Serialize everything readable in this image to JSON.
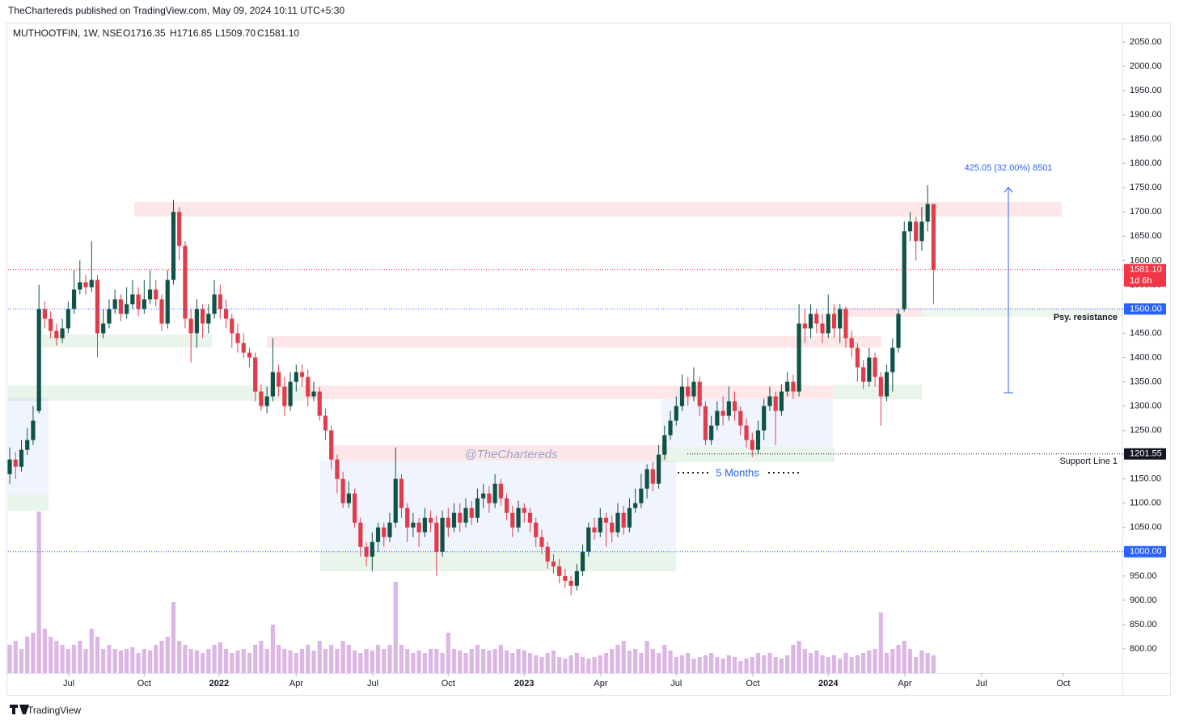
{
  "chart_data": {
    "type": "candlestick",
    "header": "TheChartereds published on TradingView.com, May 09, 2024 10:11 UTC+5:30",
    "symbol": "MUTHOOTFIN, 1W, NSE",
    "ohlc_legend": [
      "O1716.35",
      "H1716.85",
      "L1509.70",
      "C1581.10"
    ],
    "brand": "TradingView",
    "watermark": "@TheChartereds",
    "up_color": "#0f5246",
    "down_color": "#e23b49",
    "volume_color": "#dcb6e4",
    "open": [
      1160,
      1190,
      1175,
      1210,
      1230,
      1290,
      1500,
      1480,
      1455,
      1440,
      1460,
      1500,
      1540,
      1555,
      1545,
      1560,
      1450,
      1470,
      1500,
      1520,
      1490,
      1510,
      1530,
      1500,
      1520,
      1540,
      1520,
      1470,
      1560,
      1700,
      1630,
      1480,
      1450,
      1500,
      1470,
      1490,
      1530,
      1500,
      1480,
      1450,
      1430,
      1410,
      1400,
      1330,
      1300,
      1320,
      1370,
      1340,
      1300,
      1350,
      1370,
      1360,
      1320,
      1330,
      1280,
      1250,
      1190,
      1150,
      1100,
      1120,
      1060,
      1010,
      990,
      1020,
      1050,
      1030,
      1060,
      1150,
      1090,
      1050,
      1060,
      1040,
      1070,
      1060,
      1000,
      1070,
      1050,
      1080,
      1060,
      1090,
      1070,
      1110,
      1120,
      1100,
      1140,
      1110,
      1080,
      1050,
      1090,
      1080,
      1060,
      1030,
      1010,
      980,
      970,
      950,
      940,
      930,
      960,
      1000,
      1050,
      1040,
      1070,
      1060,
      1040,
      1080,
      1050,
      1090,
      1100,
      1130,
      1170,
      1140,
      1200,
      1240,
      1270,
      1300,
      1340,
      1320,
      1350,
      1300,
      1230,
      1260,
      1290,
      1280,
      1310,
      1290,
      1260,
      1230,
      1210,
      1250,
      1300,
      1320,
      1290,
      1330,
      1350,
      1330,
      1470,
      1460,
      1490,
      1470,
      1450,
      1490,
      1460,
      1500,
      1440,
      1420,
      1380,
      1350,
      1400,
      1360,
      1320,
      1370,
      1420,
      1500,
      1660,
      1680,
      1640,
      1680,
      1716.35
    ],
    "high": [
      1215,
      1205,
      1230,
      1255,
      1300,
      1550,
      1515,
      1495,
      1470,
      1480,
      1515,
      1580,
      1600,
      1570,
      1640,
      1570,
      1500,
      1520,
      1540,
      1530,
      1545,
      1560,
      1545,
      1560,
      1580,
      1560,
      1530,
      1580,
      1725,
      1710,
      1640,
      1500,
      1520,
      1510,
      1510,
      1560,
      1550,
      1520,
      1490,
      1470,
      1450,
      1420,
      1410,
      1345,
      1340,
      1440,
      1385,
      1360,
      1370,
      1385,
      1385,
      1375,
      1350,
      1340,
      1295,
      1260,
      1200,
      1165,
      1145,
      1130,
      1070,
      1020,
      1040,
      1060,
      1060,
      1080,
      1215,
      1160,
      1100,
      1080,
      1070,
      1090,
      1085,
      1075,
      1085,
      1090,
      1100,
      1100,
      1110,
      1105,
      1130,
      1140,
      1135,
      1160,
      1150,
      1120,
      1095,
      1105,
      1100,
      1090,
      1070,
      1045,
      1020,
      995,
      985,
      965,
      950,
      975,
      1015,
      1060,
      1070,
      1090,
      1080,
      1075,
      1100,
      1095,
      1110,
      1130,
      1160,
      1180,
      1185,
      1220,
      1260,
      1290,
      1320,
      1365,
      1360,
      1380,
      1360,
      1310,
      1280,
      1310,
      1320,
      1340,
      1330,
      1300,
      1275,
      1245,
      1270,
      1315,
      1340,
      1330,
      1345,
      1370,
      1365,
      1510,
      1500,
      1510,
      1500,
      1490,
      1530,
      1510,
      1510,
      1505,
      1455,
      1430,
      1395,
      1420,
      1410,
      1370,
      1385,
      1440,
      1500,
      1680,
      1700,
      1690,
      1710,
      1755,
      1716.85
    ],
    "low": [
      1140,
      1150,
      1165,
      1200,
      1220,
      1285,
      1460,
      1440,
      1425,
      1430,
      1450,
      1490,
      1530,
      1530,
      1535,
      1400,
      1440,
      1460,
      1490,
      1475,
      1480,
      1500,
      1485,
      1490,
      1510,
      1505,
      1455,
      1460,
      1550,
      1600,
      1460,
      1390,
      1420,
      1440,
      1450,
      1480,
      1480,
      1460,
      1420,
      1410,
      1400,
      1380,
      1310,
      1290,
      1285,
      1310,
      1320,
      1280,
      1290,
      1330,
      1340,
      1300,
      1310,
      1270,
      1230,
      1170,
      1120,
      1090,
      1090,
      1050,
      990,
      970,
      960,
      1000,
      1010,
      1020,
      1050,
      1070,
      1020,
      1030,
      1010,
      1030,
      1040,
      950,
      990,
      1030,
      1040,
      1040,
      1050,
      1055,
      1060,
      1090,
      1080,
      1090,
      1095,
      1065,
      1030,
      1040,
      1060,
      1040,
      1010,
      995,
      965,
      955,
      935,
      925,
      910,
      920,
      950,
      990,
      1025,
      1030,
      1010,
      1020,
      1030,
      1035,
      1040,
      1080,
      1090,
      1110,
      1125,
      1130,
      1190,
      1230,
      1260,
      1290,
      1300,
      1310,
      1280,
      1220,
      1220,
      1250,
      1260,
      1270,
      1270,
      1240,
      1215,
      1195,
      1200,
      1230,
      1290,
      1220,
      1280,
      1320,
      1315,
      1320,
      1430,
      1440,
      1450,
      1430,
      1440,
      1440,
      1430,
      1420,
      1400,
      1350,
      1335,
      1340,
      1340,
      1260,
      1310,
      1330,
      1410,
      1495,
      1640,
      1600,
      1620,
      1660,
      1509.7
    ],
    "close": [
      1190,
      1175,
      1210,
      1230,
      1270,
      1500,
      1480,
      1455,
      1440,
      1460,
      1500,
      1540,
      1555,
      1545,
      1560,
      1450,
      1470,
      1500,
      1520,
      1490,
      1510,
      1530,
      1500,
      1520,
      1540,
      1520,
      1470,
      1560,
      1700,
      1630,
      1480,
      1450,
      1500,
      1470,
      1490,
      1530,
      1500,
      1480,
      1450,
      1430,
      1410,
      1400,
      1330,
      1300,
      1320,
      1370,
      1340,
      1300,
      1350,
      1370,
      1360,
      1320,
      1330,
      1280,
      1250,
      1190,
      1150,
      1100,
      1120,
      1060,
      1010,
      990,
      1020,
      1050,
      1030,
      1060,
      1150,
      1090,
      1050,
      1060,
      1040,
      1070,
      1060,
      1000,
      1070,
      1050,
      1080,
      1060,
      1090,
      1070,
      1110,
      1120,
      1100,
      1140,
      1110,
      1080,
      1050,
      1090,
      1080,
      1060,
      1030,
      1010,
      980,
      970,
      950,
      940,
      930,
      960,
      1000,
      1050,
      1040,
      1070,
      1060,
      1040,
      1080,
      1050,
      1090,
      1100,
      1130,
      1170,
      1140,
      1200,
      1240,
      1270,
      1300,
      1340,
      1320,
      1350,
      1300,
      1230,
      1260,
      1290,
      1280,
      1310,
      1290,
      1260,
      1230,
      1210,
      1250,
      1300,
      1320,
      1290,
      1330,
      1350,
      1330,
      1470,
      1460,
      1490,
      1470,
      1450,
      1490,
      1460,
      1500,
      1440,
      1420,
      1380,
      1350,
      1400,
      1360,
      1320,
      1370,
      1420,
      1490,
      1660,
      1680,
      1640,
      1680,
      1716.35,
      1581.1
    ],
    "volume": [
      35,
      40,
      30,
      45,
      50,
      200,
      55,
      45,
      40,
      35,
      30,
      35,
      40,
      30,
      55,
      45,
      30,
      35,
      30,
      28,
      30,
      32,
      25,
      30,
      28,
      35,
      40,
      45,
      88,
      40,
      35,
      30,
      28,
      25,
      30,
      35,
      38,
      30,
      25,
      28,
      30,
      25,
      35,
      40,
      30,
      60,
      35,
      30,
      28,
      25,
      30,
      35,
      28,
      40,
      30,
      35,
      30,
      40,
      35,
      28,
      25,
      30,
      28,
      35,
      30,
      35,
      113,
      35,
      30,
      25,
      28,
      25,
      30,
      30,
      25,
      50,
      30,
      28,
      25,
      30,
      35,
      30,
      28,
      30,
      35,
      28,
      25,
      30,
      28,
      25,
      22,
      20,
      25,
      28,
      20,
      18,
      22,
      25,
      20,
      18,
      20,
      22,
      25,
      30,
      35,
      40,
      28,
      30,
      25,
      40,
      30,
      25,
      35,
      28,
      20,
      22,
      25,
      18,
      20,
      22,
      25,
      20,
      18,
      22,
      20,
      15,
      18,
      20,
      25,
      22,
      25,
      20,
      18,
      22,
      35,
      40,
      30,
      25,
      28,
      22,
      20,
      22,
      18,
      25,
      20,
      22,
      25,
      28,
      30,
      75,
      25,
      30,
      35,
      40,
      30,
      20,
      28,
      25,
      22
    ],
    "xlim": [
      -0.28,
      190.31
    ],
    "xticks": [
      {
        "value": 10.1,
        "label": "Jul"
      },
      {
        "value": 23,
        "label": "Oct"
      },
      {
        "value": 35.8,
        "label": "2022"
      },
      {
        "value": 49,
        "label": "Apr"
      },
      {
        "value": 62.1,
        "label": "Jul"
      },
      {
        "value": 75,
        "label": "Oct"
      },
      {
        "value": 88,
        "label": "2023"
      },
      {
        "value": 101.1,
        "label": "Apr"
      },
      {
        "value": 114,
        "label": "Jul"
      },
      {
        "value": 127.1,
        "label": "Oct"
      },
      {
        "value": 140,
        "label": "2024"
      },
      {
        "value": 153.1,
        "label": "Apr"
      },
      {
        "value": 166.2,
        "label": "Jul"
      },
      {
        "value": 180.2,
        "label": "Oct"
      }
    ],
    "ylim": [
      750,
      2078.3
    ],
    "yticks": [
      {
        "value": 800,
        "label": "800.00"
      },
      {
        "value": 850,
        "label": "850.00"
      },
      {
        "value": 900,
        "label": "900.00"
      },
      {
        "value": 950,
        "label": "950.00"
      },
      {
        "value": 1000,
        "label": "1000.00"
      },
      {
        "value": 1050,
        "label": "1050.00"
      },
      {
        "value": 1100,
        "label": "1100.00"
      },
      {
        "value": 1150,
        "label": "1150.00"
      },
      {
        "value": 1200,
        "label": "1200.00"
      },
      {
        "value": 1250,
        "label": "1250.00"
      },
      {
        "value": 1300,
        "label": "1300.00"
      },
      {
        "value": 1350,
        "label": "1350.00"
      },
      {
        "value": 1400,
        "label": "1400.00"
      },
      {
        "value": 1450,
        "label": "1450.00"
      },
      {
        "value": 1500,
        "label": "1500.00"
      },
      {
        "value": 1550,
        "label": "1550.00"
      },
      {
        "value": 1600,
        "label": "1600.00"
      },
      {
        "value": 1650,
        "label": "1650.00"
      },
      {
        "value": 1700,
        "label": "1700.00"
      },
      {
        "value": 1750,
        "label": "1750.00"
      },
      {
        "value": 1800,
        "label": "1800.00"
      },
      {
        "value": 1850,
        "label": "1850.00"
      },
      {
        "value": 1900,
        "label": "1900.00"
      },
      {
        "value": 1950,
        "label": "1950.00"
      },
      {
        "value": 2000,
        "label": "2000.00"
      },
      {
        "value": 2050,
        "label": "2050.00"
      }
    ],
    "price_lines": [
      {
        "value": 1581.1,
        "label": "1581.10",
        "countdown": "1d 6h",
        "color": "#f23645"
      },
      {
        "value": 1500,
        "label": "1500.00",
        "color": "#2962ff"
      },
      {
        "value": 1201.55,
        "label": "1201.55",
        "color": "#131722"
      },
      {
        "value": 1000,
        "label": "1000.00",
        "color": "#2962ff"
      }
    ],
    "annotations": {
      "psy": "Psy. resistance",
      "support": "Support Line 1",
      "measure": "425.05 (32.00%) 8501",
      "months": "5 Months"
    }
  }
}
